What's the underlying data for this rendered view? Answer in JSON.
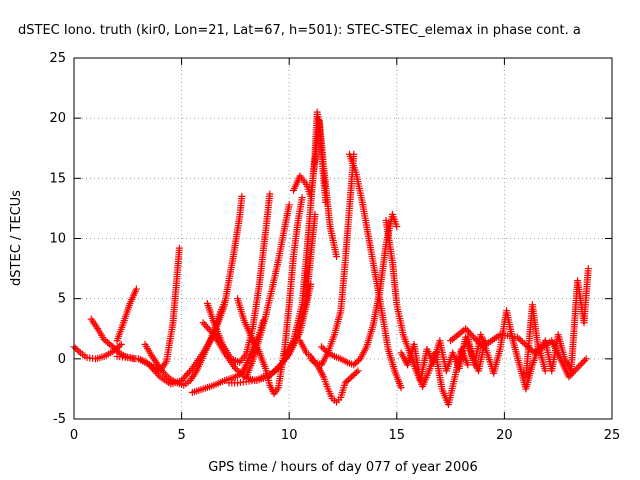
{
  "chart_data": {
    "type": "scatter",
    "title": "dSTEC Iono. truth (kir0, Lon=21, Lat=67, h=501): STEC-STEC_elemax in phase cont. a",
    "xlabel": "GPS time / hours of day 077 of year 2006",
    "ylabel": "dSTEC  / TECUs",
    "xlim": [
      0,
      25
    ],
    "ylim": [
      -5,
      25
    ],
    "xticks": [
      0,
      5,
      10,
      15,
      20,
      25
    ],
    "yticks": [
      -5,
      0,
      5,
      10,
      15,
      20,
      25
    ],
    "grid": true,
    "marker": "+",
    "color": "#ff0000",
    "series": [
      {
        "x": [
          0.0,
          0.3,
          0.6,
          1.0,
          1.4,
          1.8,
          2.2
        ],
        "y": [
          1.0,
          0.5,
          0.1,
          0.0,
          0.2,
          0.6,
          1.2
        ]
      },
      {
        "x": [
          0.8,
          1.1,
          1.4,
          1.8,
          2.1,
          2.4,
          2.8,
          3.0,
          3.3,
          3.6,
          4.0,
          4.3,
          4.6,
          4.9
        ],
        "y": [
          3.3,
          2.5,
          1.6,
          1.0,
          0.5,
          0.2,
          0.0,
          0.0,
          -0.2,
          -0.6,
          -1.0,
          -0.2,
          3.0,
          9.2
        ]
      },
      {
        "x": [
          2.0,
          2.3,
          2.6,
          2.9
        ],
        "y": [
          1.5,
          3.0,
          4.6,
          5.8
        ]
      },
      {
        "x": [
          2.0,
          2.5,
          3.0,
          3.5,
          4.0,
          4.5,
          5.0,
          5.5,
          6.0,
          6.5,
          7.0,
          7.4,
          7.7,
          7.8
        ],
        "y": [
          0.2,
          0.1,
          0.0,
          -0.5,
          -1.5,
          -2.1,
          -1.8,
          -0.8,
          0.5,
          2.0,
          4.5,
          8.5,
          11.8,
          13.5
        ]
      },
      {
        "x": [
          3.3,
          3.6,
          4.0,
          4.4,
          4.8,
          5.1,
          5.4,
          5.7,
          6.0,
          6.3,
          6.6,
          6.8,
          7.0
        ],
        "y": [
          1.2,
          0.3,
          -0.8,
          -1.6,
          -2.0,
          -2.2,
          -1.8,
          -1.0,
          0.2,
          1.4,
          2.8,
          3.9,
          4.7
        ]
      },
      {
        "x": [
          5.5,
          6.0,
          6.5,
          7.0,
          7.5,
          7.8,
          8.0,
          8.3,
          8.6,
          8.8
        ],
        "y": [
          -2.8,
          -2.5,
          -2.2,
          -1.8,
          -1.5,
          -1.2,
          -0.5,
          0.8,
          2.0,
          3.2
        ]
      },
      {
        "x": [
          6.0,
          6.5,
          7.0,
          7.5,
          8.0,
          8.5,
          9.0,
          9.5,
          10.0,
          10.5,
          10.8,
          11.0
        ],
        "y": [
          3.0,
          2.0,
          0.5,
          -0.8,
          -1.6,
          -1.8,
          -1.5,
          -0.8,
          0.4,
          2.2,
          4.5,
          6.2
        ]
      },
      {
        "x": [
          6.2,
          6.5,
          6.9,
          7.3,
          7.7,
          8.0,
          8.3,
          8.6,
          8.9,
          9.1
        ],
        "y": [
          4.6,
          3.0,
          1.2,
          0.0,
          -0.3,
          0.4,
          2.5,
          6.0,
          10.5,
          13.7
        ]
      },
      {
        "x": [
          7.6,
          7.9,
          8.3,
          8.6,
          8.9,
          9.1,
          9.3,
          9.5,
          9.8,
          10.0,
          10.2,
          10.4,
          10.6
        ],
        "y": [
          5.0,
          3.2,
          1.6,
          0.6,
          -0.8,
          -2.2,
          -2.9,
          -2.4,
          1.0,
          4.5,
          8.5,
          11.3,
          13.4
        ]
      },
      {
        "x": [
          8.0,
          8.3,
          8.6,
          8.9,
          9.2,
          9.5,
          9.8,
          10.0
        ],
        "y": [
          -1.5,
          -0.2,
          1.6,
          3.5,
          5.8,
          8.2,
          11.0,
          12.8
        ]
      },
      {
        "x": [
          7.2,
          7.6,
          8.0,
          8.4,
          8.8,
          9.2,
          9.6,
          10.0,
          10.4,
          10.8,
          11.0,
          11.2
        ],
        "y": [
          -2.0,
          -2.0,
          -1.9,
          -1.8,
          -1.5,
          -1.2,
          -0.5,
          0.4,
          2.0,
          5.0,
          8.5,
          12.0
        ]
      },
      {
        "x": [
          9.8,
          10.2,
          10.6,
          10.9,
          11.1,
          11.2,
          11.3,
          11.4,
          11.5,
          11.6,
          11.7
        ],
        "y": [
          0.3,
          1.5,
          4.5,
          10.5,
          15.0,
          17.0,
          20.5,
          19.5,
          17.0,
          15.0,
          13.0
        ]
      },
      {
        "x": [
          10.5,
          10.8,
          11.0,
          11.2,
          11.5,
          11.8,
          12.1,
          12.4,
          12.6,
          12.8,
          13.0
        ],
        "y": [
          1.5,
          0.5,
          0.2,
          -0.3,
          -0.5,
          0.5,
          2.0,
          4.0,
          8.0,
          12.5,
          17.0
        ]
      },
      {
        "x": [
          10.2,
          10.5,
          10.8,
          11.0,
          11.2,
          11.4,
          11.6,
          11.9,
          12.2
        ],
        "y": [
          14.0,
          15.2,
          14.5,
          13.5,
          16.5,
          19.8,
          16.0,
          11.0,
          8.5
        ]
      },
      {
        "x": [
          11.0,
          11.3,
          11.6,
          11.8,
          12.0,
          12.2,
          12.4,
          12.6,
          12.9,
          13.2
        ],
        "y": [
          0.0,
          -0.5,
          -1.5,
          -2.5,
          -3.3,
          -3.6,
          -3.2,
          -2.0,
          -1.5,
          -1.0
        ]
      },
      {
        "x": [
          11.5,
          11.8,
          12.1,
          12.4,
          12.7,
          13.0,
          13.3,
          13.6,
          13.9,
          14.2,
          14.5,
          14.8,
          15.0
        ],
        "y": [
          1.0,
          0.5,
          0.2,
          0.0,
          -0.3,
          -0.5,
          0.0,
          1.0,
          2.8,
          5.5,
          9.5,
          12.0,
          11.0
        ]
      },
      {
        "x": [
          12.8,
          13.1,
          13.4,
          13.7,
          14.0,
          14.3,
          14.6,
          14.9,
          15.2
        ],
        "y": [
          17.0,
          15.5,
          13.0,
          10.0,
          7.0,
          4.0,
          0.8,
          -1.0,
          -2.4
        ]
      },
      {
        "x": [
          14.5,
          14.8,
          15.0,
          15.3,
          15.6,
          15.9,
          16.2,
          16.5,
          16.8,
          17.1,
          17.4,
          17.7,
          18.0,
          18.3
        ],
        "y": [
          11.5,
          8.0,
          4.5,
          2.0,
          0.5,
          -1.0,
          -2.3,
          -1.0,
          0.5,
          -2.5,
          -3.8,
          -1.5,
          0.8,
          -0.5
        ]
      },
      {
        "x": [
          15.2,
          15.5,
          15.8,
          16.1,
          16.4,
          16.7,
          17.0,
          17.3,
          17.6,
          17.9,
          18.2,
          18.5,
          18.8,
          19.1
        ],
        "y": [
          0.5,
          -0.5,
          1.2,
          -1.8,
          0.8,
          -0.3,
          1.5,
          -1.0,
          0.5,
          -0.8,
          1.8,
          0.2,
          -1.0,
          1.5
        ]
      },
      {
        "x": [
          18.0,
          18.3,
          18.6,
          18.9,
          19.2,
          19.5,
          19.8,
          20.1,
          20.4,
          20.7,
          21.0,
          21.3,
          21.6,
          21.9
        ],
        "y": [
          0.5,
          1.8,
          -0.5,
          2.0,
          0.5,
          -1.2,
          0.8,
          4.0,
          1.5,
          -0.5,
          -2.5,
          -0.5,
          1.0,
          -1.0
        ]
      },
      {
        "x": [
          21.0,
          21.3,
          21.6,
          21.9,
          22.2,
          22.5,
          22.8,
          23.1,
          23.4,
          23.7,
          23.9
        ],
        "y": [
          -1.5,
          4.5,
          0.5,
          1.5,
          -1.0,
          2.0,
          0.0,
          -1.0,
          6.5,
          3.0,
          7.5
        ]
      },
      {
        "x": [
          17.5,
          18.2,
          19.0,
          19.8,
          20.6,
          21.4,
          22.2,
          23.0,
          23.8
        ],
        "y": [
          1.5,
          2.5,
          1.0,
          2.0,
          1.8,
          0.5,
          1.5,
          -1.5,
          0.0
        ]
      }
    ]
  }
}
